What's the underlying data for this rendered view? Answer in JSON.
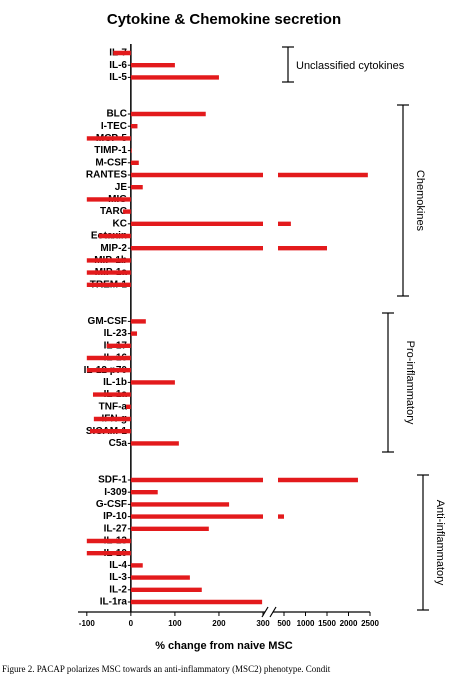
{
  "chart_data": {
    "type": "bar",
    "orientation": "horizontal",
    "title": "Cytokine & Chemokine secretion",
    "x_label": "% change from naive MSC",
    "caption": "Figure 2. PACAP polarizes MSC towards an anti-inflammatory (MSC2) phenotype. Condit",
    "categories": [
      "IL-7",
      "IL-6",
      "IL-5",
      null,
      null,
      "BLC",
      "I-TEC",
      "MCP-5",
      "TIMP-1",
      "M-CSF",
      "RANTES",
      "JE",
      "MIG",
      "TARC",
      "KC",
      "Eotaxin",
      "MIP-2",
      "MIP-1b",
      "MIP-1a",
      "TREM-1",
      null,
      null,
      "GM-CSF",
      "IL-23",
      "IL-17",
      "IL-16",
      "IL-12 p70",
      "IL-1b",
      "IL-1a",
      "TNF-a",
      "IFN-g",
      "SICAM-1",
      "C5a",
      null,
      null,
      "SDF-1",
      "I-309",
      "G-CSF",
      "IP-10",
      "IL-27",
      "IL-13",
      "IL-10",
      "IL-4",
      "IL-3",
      "IL-2",
      "IL-1ra"
    ],
    "values": [
      -40,
      100,
      200,
      null,
      null,
      170,
      15,
      -100,
      2,
      18,
      2450,
      27,
      -100,
      -18,
      660,
      -73,
      1500,
      -100,
      -100,
      -100,
      null,
      null,
      34,
      14,
      -55,
      -100,
      -100,
      100,
      -86,
      -11,
      -84,
      -93,
      109,
      null,
      null,
      2220,
      61,
      223,
      500,
      177,
      -100,
      -100,
      27,
      134,
      161,
      298
    ],
    "color": "#e31a1c",
    "xlim_segments": [
      [
        -120,
        300
      ],
      [
        300,
        2500
      ]
    ],
    "xticks": [
      -100,
      0,
      100,
      200,
      300,
      500,
      1000,
      1500,
      2000,
      2500
    ],
    "annotations": [
      "Unclassified cytokines",
      "Chemokines",
      "Pro-inflammatory",
      "Anti-inflammatory"
    ]
  }
}
